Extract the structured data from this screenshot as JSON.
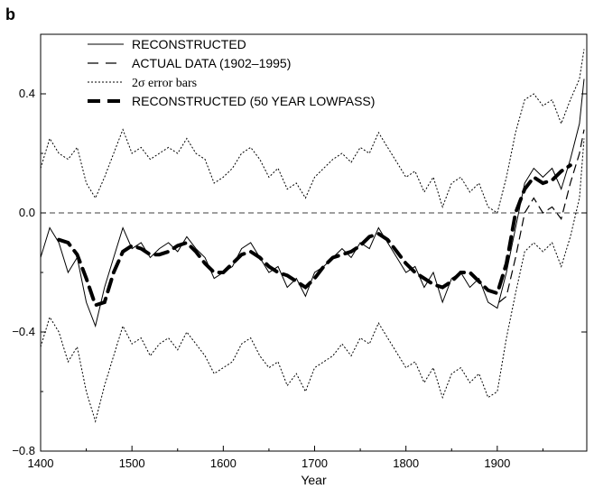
{
  "panel_label": "b",
  "chart_data": {
    "type": "line",
    "xlabel": "Year",
    "ylabel": "",
    "xlim": [
      1400,
      1998
    ],
    "ylim": [
      -0.8,
      0.6
    ],
    "x_ticks": [
      1400,
      1500,
      1600,
      1700,
      1800,
      1900
    ],
    "y_ticks": [
      {
        "value": 0.4,
        "label": "0.4"
      },
      {
        "value": 0.0,
        "label": "0.0"
      },
      {
        "value": -0.4,
        "label": "−0.4"
      },
      {
        "value": -0.8,
        "label": "−0.8"
      }
    ],
    "zero_line": 0.0,
    "legend_position": "top-left",
    "series": [
      {
        "name": "RECONSTRUCTED",
        "style": "solid-thin",
        "x": [
          1400,
          1410,
          1420,
          1430,
          1440,
          1450,
          1460,
          1470,
          1480,
          1490,
          1500,
          1510,
          1520,
          1530,
          1540,
          1550,
          1560,
          1570,
          1580,
          1590,
          1600,
          1610,
          1620,
          1630,
          1640,
          1650,
          1660,
          1670,
          1680,
          1690,
          1700,
          1710,
          1720,
          1730,
          1740,
          1750,
          1760,
          1770,
          1780,
          1790,
          1800,
          1810,
          1820,
          1830,
          1840,
          1850,
          1860,
          1870,
          1880,
          1890,
          1900,
          1910,
          1920,
          1930,
          1940,
          1950,
          1960,
          1970,
          1980,
          1990,
          1995
        ],
        "values": [
          -0.15,
          -0.05,
          -0.1,
          -0.2,
          -0.15,
          -0.3,
          -0.38,
          -0.25,
          -0.15,
          -0.05,
          -0.12,
          -0.1,
          -0.15,
          -0.12,
          -0.1,
          -0.13,
          -0.08,
          -0.12,
          -0.15,
          -0.22,
          -0.2,
          -0.18,
          -0.12,
          -0.1,
          -0.15,
          -0.2,
          -0.18,
          -0.25,
          -0.22,
          -0.28,
          -0.2,
          -0.18,
          -0.15,
          -0.12,
          -0.15,
          -0.1,
          -0.12,
          -0.05,
          -0.1,
          -0.15,
          -0.2,
          -0.18,
          -0.25,
          -0.2,
          -0.3,
          -0.22,
          -0.2,
          -0.25,
          -0.22,
          -0.3,
          -0.32,
          -0.2,
          -0.05,
          0.1,
          0.15,
          0.12,
          0.15,
          0.08,
          0.18,
          0.3,
          0.45
        ]
      },
      {
        "name": "ACTUAL DATA (1902–1995)",
        "style": "dash",
        "x": [
          1902,
          1910,
          1920,
          1930,
          1940,
          1950,
          1960,
          1970,
          1980,
          1990,
          1995
        ],
        "values": [
          -0.3,
          -0.28,
          -0.15,
          0.0,
          0.05,
          0.0,
          0.02,
          -0.02,
          0.1,
          0.2,
          0.28
        ]
      },
      {
        "name": "2σ error bars",
        "style": "dotted",
        "x": [
          1400,
          1410,
          1420,
          1430,
          1440,
          1450,
          1460,
          1470,
          1480,
          1490,
          1500,
          1510,
          1520,
          1530,
          1540,
          1550,
          1560,
          1570,
          1580,
          1590,
          1600,
          1610,
          1620,
          1630,
          1640,
          1650,
          1660,
          1670,
          1680,
          1690,
          1700,
          1710,
          1720,
          1730,
          1740,
          1750,
          1760,
          1770,
          1780,
          1790,
          1800,
          1810,
          1820,
          1830,
          1840,
          1850,
          1860,
          1870,
          1880,
          1890,
          1900,
          1910,
          1920,
          1930,
          1940,
          1950,
          1960,
          1970,
          1980,
          1990,
          1995
        ],
        "upper": [
          0.15,
          0.25,
          0.2,
          0.18,
          0.22,
          0.1,
          0.05,
          0.12,
          0.2,
          0.28,
          0.2,
          0.22,
          0.18,
          0.2,
          0.22,
          0.2,
          0.25,
          0.2,
          0.18,
          0.1,
          0.12,
          0.15,
          0.2,
          0.22,
          0.18,
          0.12,
          0.15,
          0.08,
          0.1,
          0.05,
          0.12,
          0.15,
          0.18,
          0.2,
          0.17,
          0.22,
          0.2,
          0.27,
          0.22,
          0.17,
          0.12,
          0.14,
          0.07,
          0.12,
          0.02,
          0.1,
          0.12,
          0.07,
          0.1,
          0.02,
          0.0,
          0.12,
          0.27,
          0.38,
          0.4,
          0.36,
          0.38,
          0.3,
          0.38,
          0.45,
          0.55
        ],
        "lower": [
          -0.45,
          -0.35,
          -0.4,
          -0.5,
          -0.45,
          -0.6,
          -0.7,
          -0.58,
          -0.48,
          -0.38,
          -0.44,
          -0.42,
          -0.48,
          -0.44,
          -0.42,
          -0.46,
          -0.4,
          -0.44,
          -0.48,
          -0.54,
          -0.52,
          -0.5,
          -0.44,
          -0.42,
          -0.48,
          -0.52,
          -0.5,
          -0.58,
          -0.54,
          -0.6,
          -0.52,
          -0.5,
          -0.48,
          -0.44,
          -0.48,
          -0.42,
          -0.44,
          -0.37,
          -0.42,
          -0.47,
          -0.52,
          -0.5,
          -0.57,
          -0.52,
          -0.62,
          -0.54,
          -0.52,
          -0.57,
          -0.54,
          -0.62,
          -0.6,
          -0.42,
          -0.27,
          -0.13,
          -0.1,
          -0.13,
          -0.1,
          -0.18,
          -0.08,
          0.05,
          0.25
        ]
      },
      {
        "name": "RECONSTRUCTED (50 YEAR LOWPASS)",
        "style": "dash-thick",
        "x": [
          1420,
          1430,
          1440,
          1450,
          1460,
          1470,
          1480,
          1490,
          1500,
          1510,
          1520,
          1530,
          1540,
          1550,
          1560,
          1570,
          1580,
          1590,
          1600,
          1610,
          1620,
          1630,
          1640,
          1650,
          1660,
          1670,
          1680,
          1690,
          1700,
          1710,
          1720,
          1730,
          1740,
          1750,
          1760,
          1770,
          1780,
          1790,
          1800,
          1810,
          1820,
          1830,
          1840,
          1850,
          1860,
          1870,
          1880,
          1890,
          1900,
          1910,
          1920,
          1930,
          1940,
          1950,
          1960,
          1970,
          1980
        ],
        "values": [
          -0.09,
          -0.1,
          -0.14,
          -0.22,
          -0.31,
          -0.3,
          -0.2,
          -0.13,
          -0.11,
          -0.12,
          -0.14,
          -0.14,
          -0.13,
          -0.11,
          -0.1,
          -0.13,
          -0.17,
          -0.2,
          -0.2,
          -0.17,
          -0.14,
          -0.13,
          -0.15,
          -0.18,
          -0.2,
          -0.21,
          -0.23,
          -0.25,
          -0.22,
          -0.18,
          -0.15,
          -0.14,
          -0.13,
          -0.11,
          -0.08,
          -0.07,
          -0.09,
          -0.13,
          -0.17,
          -0.2,
          -0.22,
          -0.24,
          -0.25,
          -0.23,
          -0.2,
          -0.2,
          -0.23,
          -0.26,
          -0.27,
          -0.17,
          0.0,
          0.08,
          0.12,
          0.1,
          0.11,
          0.14,
          0.16
        ]
      }
    ]
  }
}
